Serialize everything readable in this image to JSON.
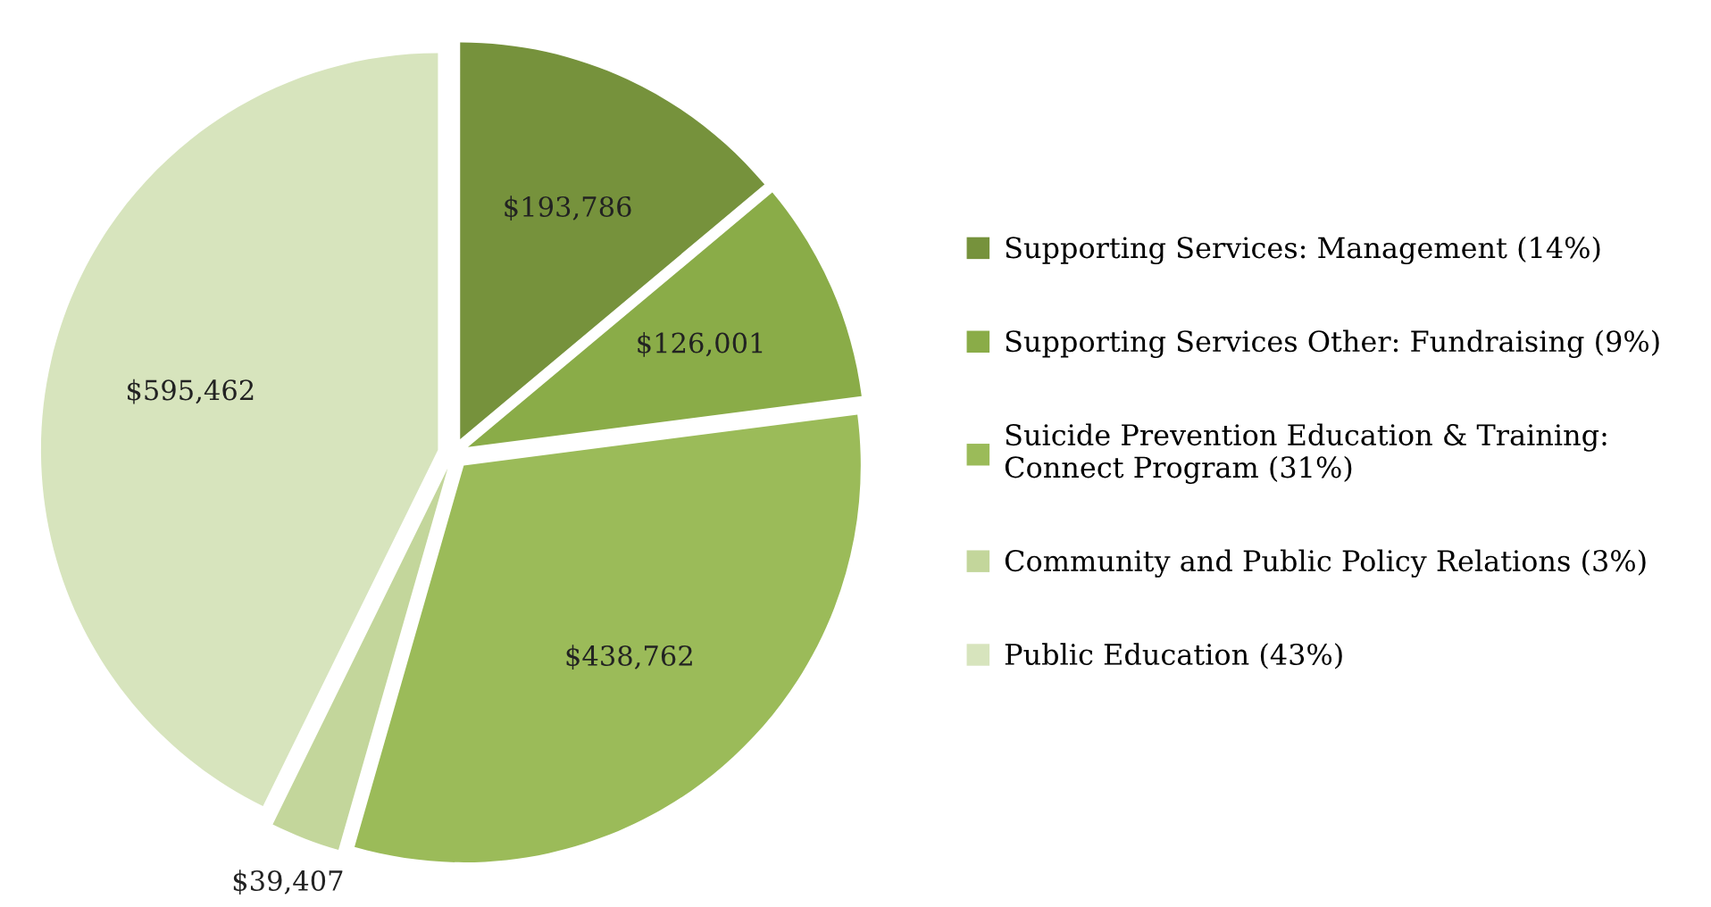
{
  "chart_data": {
    "type": "pie",
    "categories": [
      "Supporting Services: Management (14%)",
      "Supporting Services Other: Fundraising (9%)",
      "Suicide Prevention Education & Training:\nConnect Program (31%)",
      "Community and Public Policy Relations (3%)",
      "Public Education (43%)"
    ],
    "values": [
      193786,
      126001,
      438762,
      39407,
      595462
    ],
    "value_labels": [
      "$193,786",
      "$126,001",
      "$438,762",
      "$39,407",
      "$595,462"
    ],
    "colors": [
      "#76923c",
      "#8aac48",
      "#9bbb59",
      "#c3d69b",
      "#d7e4bd"
    ],
    "legend": "right"
  }
}
